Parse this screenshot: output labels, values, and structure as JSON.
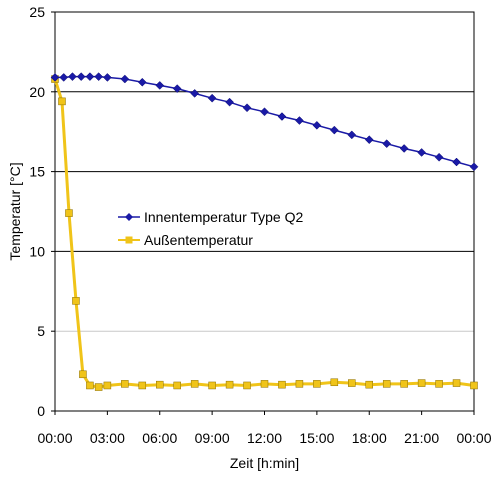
{
  "chart_data": {
    "type": "line",
    "title": "",
    "xlabel": "Zeit [h:min]",
    "ylabel": "Temperatur [°C]",
    "x_tick_labels": [
      "00:00",
      "03:00",
      "06:00",
      "09:00",
      "12:00",
      "15:00",
      "18:00",
      "21:00",
      "00:00"
    ],
    "y_ticks": [
      0,
      5,
      10,
      15,
      20,
      25
    ],
    "xlim_hours": [
      0,
      24
    ],
    "ylim": [
      0,
      25
    ],
    "grid": "horizontal",
    "legend_position": "center-left",
    "series": [
      {
        "name": "Innentemperatur Type Q2",
        "color": "#1a1aa6",
        "marker": "diamond",
        "x_hours": [
          0,
          0.5,
          1,
          1.5,
          2,
          2.5,
          3,
          4,
          5,
          6,
          7,
          8,
          9,
          10,
          11,
          12,
          13,
          14,
          15,
          16,
          17,
          18,
          19,
          20,
          21,
          22,
          23,
          24
        ],
        "values": [
          20.9,
          20.9,
          20.95,
          20.95,
          20.95,
          20.95,
          20.9,
          20.8,
          20.6,
          20.4,
          20.2,
          19.9,
          19.6,
          19.35,
          19.0,
          18.75,
          18.45,
          18.2,
          17.9,
          17.6,
          17.3,
          17.0,
          16.75,
          16.45,
          16.2,
          15.9,
          15.6,
          15.3
        ]
      },
      {
        "name": "Außentemperatur",
        "color": "#f0c419",
        "marker": "square",
        "x_hours": [
          0,
          0.4,
          0.8,
          1.2,
          1.6,
          2.0,
          2.5,
          3,
          4,
          5,
          6,
          7,
          8,
          9,
          10,
          11,
          12,
          13,
          14,
          15,
          16,
          17,
          18,
          19,
          20,
          21,
          22,
          23,
          24
        ],
        "values": [
          20.8,
          19.4,
          12.4,
          6.9,
          2.3,
          1.6,
          1.5,
          1.6,
          1.7,
          1.6,
          1.65,
          1.6,
          1.7,
          1.6,
          1.65,
          1.6,
          1.7,
          1.65,
          1.7,
          1.7,
          1.8,
          1.75,
          1.65,
          1.7,
          1.7,
          1.75,
          1.7,
          1.75,
          1.6
        ]
      }
    ]
  }
}
